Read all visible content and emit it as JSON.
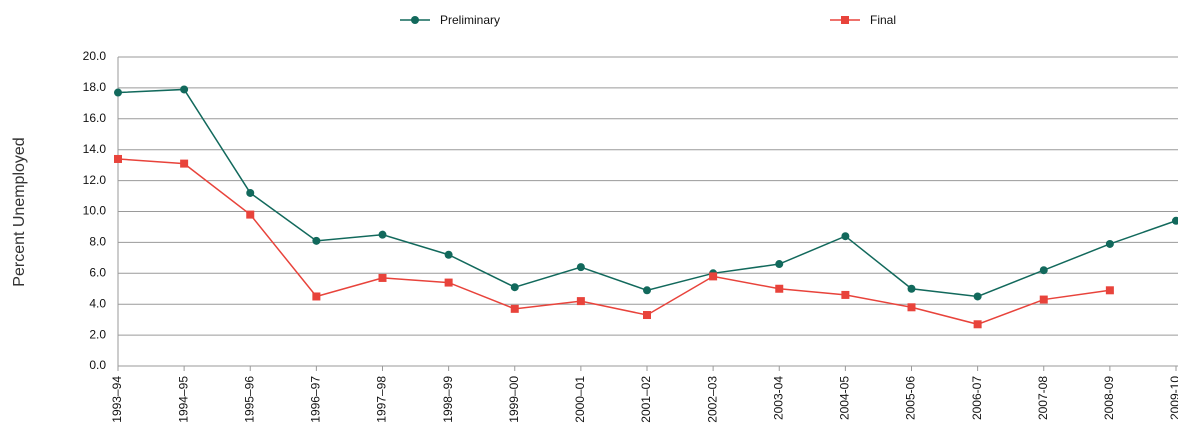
{
  "chart_data": {
    "type": "line",
    "y_label": "Percent Unemployed",
    "categories": [
      "1993–94",
      "1994–95",
      "1995–96",
      "1996–97",
      "1997–98",
      "1998–99",
      "1999–00",
      "2000–01",
      "2001–02",
      "2002–03",
      "2003-04",
      "2004-05",
      "2005-06",
      "2006-07",
      "2007-08",
      "2008-09",
      "2009-10"
    ],
    "series": [
      {
        "name": "Preliminary",
        "color": "#12695c",
        "marker": "circle",
        "values": [
          17.7,
          17.9,
          11.2,
          8.1,
          8.5,
          7.2,
          5.1,
          6.4,
          4.9,
          6.0,
          6.6,
          8.4,
          5.0,
          4.5,
          6.2,
          7.9,
          9.4
        ]
      },
      {
        "name": "Final",
        "color": "#e8433b",
        "marker": "square",
        "values": [
          13.4,
          13.1,
          9.8,
          4.5,
          5.7,
          5.4,
          3.7,
          4.2,
          3.3,
          5.8,
          5.0,
          4.6,
          3.8,
          2.7,
          4.3,
          4.9,
          null
        ]
      }
    ],
    "ylim": [
      0,
      20
    ],
    "yticks": [
      {
        "value": 0,
        "label": "0.0"
      },
      {
        "value": 2,
        "label": "2.0"
      },
      {
        "value": 4,
        "label": "4.0"
      },
      {
        "value": 6,
        "label": "6.0"
      },
      {
        "value": 8,
        "label": "8.0"
      },
      {
        "value": 10,
        "label": "10.0"
      },
      {
        "value": 12,
        "label": "12.0"
      },
      {
        "value": 14,
        "label": "14.0"
      },
      {
        "value": 16,
        "label": "16.0"
      },
      {
        "value": 18,
        "label": "18.0"
      },
      {
        "value": 20,
        "label": "20.0"
      }
    ],
    "grid": true,
    "legend": "top"
  }
}
